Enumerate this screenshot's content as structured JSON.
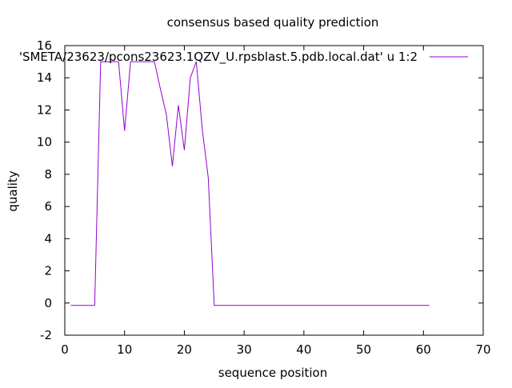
{
  "chart_data": {
    "type": "line",
    "title": "consensus based quality prediction",
    "xlabel": "sequence position",
    "ylabel": "quality",
    "xlim": [
      0,
      70
    ],
    "ylim": [
      -2,
      16
    ],
    "xticks": [
      "0",
      "10",
      "20",
      "30",
      "40",
      "50",
      "60",
      "70"
    ],
    "yticks": [
      "-2",
      "0",
      "2",
      "4",
      "6",
      "8",
      "10",
      "12",
      "14",
      "16"
    ],
    "grid": false,
    "legend_position": "top-right",
    "series": [
      {
        "name": "'SMETA/23623/pcons23623.1QZV_U.rpsblast.5.pdb.local.dat' u 1:2",
        "color": "#9400d3",
        "x": [
          1,
          2,
          3,
          4,
          5,
          6,
          7,
          8,
          9,
          10,
          11,
          12,
          13,
          14,
          15,
          16,
          17,
          18,
          19,
          20,
          21,
          22,
          23,
          24,
          25,
          26,
          27,
          28,
          29,
          30,
          31,
          32,
          33,
          34,
          35,
          36,
          37,
          38,
          39,
          40,
          41,
          42,
          43,
          44,
          45,
          46,
          47,
          48,
          49,
          50,
          51,
          52,
          53,
          54,
          55,
          56,
          57,
          58,
          59,
          60,
          61
        ],
        "y": [
          -0.15,
          -0.15,
          -0.15,
          -0.15,
          -0.15,
          15.0,
          15.0,
          15.0,
          15.0,
          10.7,
          15.0,
          15.0,
          15.0,
          15.0,
          15.0,
          13.3,
          11.7,
          8.5,
          12.3,
          9.5,
          14.0,
          15.0,
          10.8,
          7.8,
          -0.15,
          -0.15,
          -0.15,
          -0.15,
          -0.15,
          -0.15,
          -0.15,
          -0.15,
          -0.15,
          -0.15,
          -0.15,
          -0.15,
          -0.15,
          -0.15,
          -0.15,
          -0.15,
          -0.15,
          -0.15,
          -0.15,
          -0.15,
          -0.15,
          -0.15,
          -0.15,
          -0.15,
          -0.15,
          -0.15,
          -0.15,
          -0.15,
          -0.15,
          -0.15,
          -0.15,
          -0.15,
          -0.15,
          -0.15,
          -0.15,
          -0.15,
          -0.15
        ]
      }
    ]
  }
}
